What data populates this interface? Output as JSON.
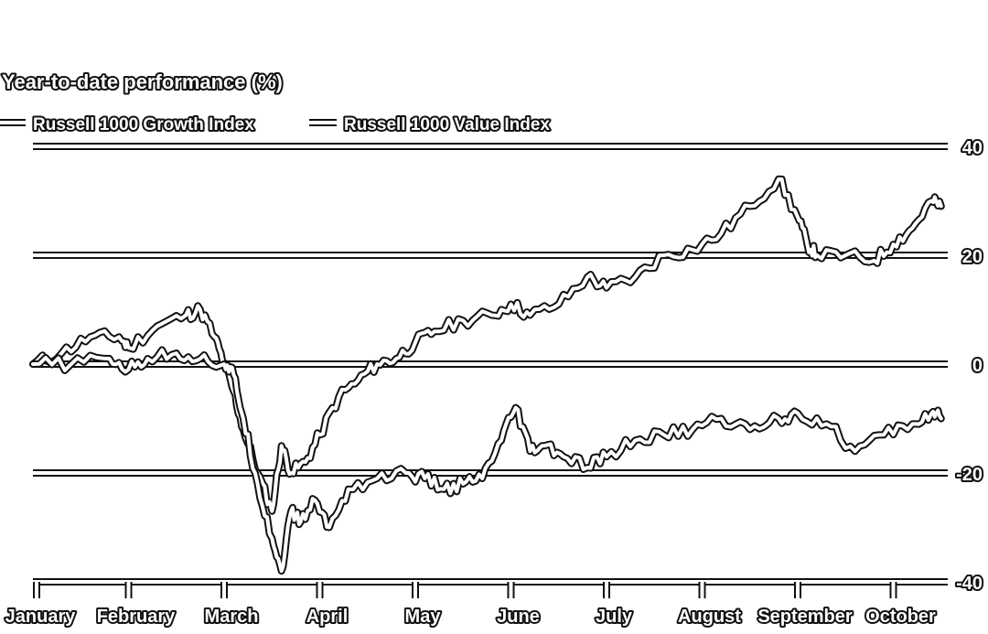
{
  "chart_data": {
    "type": "line",
    "title": "Year-to-date performance (%)",
    "xlabel": "",
    "ylabel": "",
    "ylim": [
      -40,
      40
    ],
    "y_ticks": [
      40,
      20,
      0,
      -20,
      -40
    ],
    "y_tick_labels": [
      "40",
      "20",
      "0",
      "-20",
      "-40"
    ],
    "x_tick_labels": [
      "January",
      "February",
      "March",
      "April",
      "May",
      "June",
      "July",
      "August",
      "September",
      "October"
    ],
    "x_range_months": [
      0,
      9.5
    ],
    "grid": true,
    "legend_position": "top-left",
    "colors": {
      "line": "#ffffff",
      "outline": "#111111"
    },
    "series": [
      {
        "name": "Russell 1000 Growth Index",
        "x": [
          0,
          0.3,
          0.6,
          0.9,
          1.0,
          1.3,
          1.6,
          1.75,
          1.9,
          2.0,
          2.1,
          2.2,
          2.35,
          2.5,
          2.6,
          2.7,
          2.85,
          3.0,
          3.2,
          3.4,
          3.6,
          3.8,
          4.0,
          4.2,
          4.5,
          4.8,
          5.0,
          5.2,
          5.5,
          5.8,
          6.0,
          6.3,
          6.6,
          6.9,
          7.2,
          7.5,
          7.8,
          8.0,
          8.1,
          8.2,
          8.5,
          8.8,
          9.0,
          9.2,
          9.4,
          9.5
        ],
        "values": [
          0,
          2,
          5,
          5,
          3,
          7,
          9,
          10,
          5,
          0,
          -5,
          -12,
          -20,
          -27,
          -15,
          -20,
          -18,
          -13,
          -6,
          -3,
          0,
          1,
          4,
          6,
          8,
          9,
          11,
          9,
          11,
          16,
          14,
          16,
          20,
          21,
          24,
          29,
          34,
          27,
          22,
          20,
          20,
          19,
          22,
          25,
          30,
          29
        ]
      },
      {
        "name": "Russell 1000 Value Index",
        "x": [
          0,
          0.4,
          0.8,
          1.0,
          1.2,
          1.5,
          1.75,
          2.0,
          2.1,
          2.2,
          2.35,
          2.5,
          2.6,
          2.7,
          2.8,
          2.95,
          3.1,
          3.3,
          3.6,
          3.9,
          4.1,
          4.3,
          4.5,
          4.7,
          4.9,
          5.05,
          5.2,
          5.35,
          5.55,
          5.8,
          6.0,
          6.3,
          6.6,
          6.9,
          7.2,
          7.5,
          7.8,
          8.0,
          8.3,
          8.6,
          8.9,
          9.2,
          9.4,
          9.5
        ],
        "values": [
          0,
          0,
          1,
          -1,
          1,
          2,
          1,
          0,
          -2,
          -10,
          -22,
          -32,
          -38,
          -27,
          -29,
          -25,
          -30,
          -23,
          -21,
          -20,
          -21,
          -23,
          -22,
          -21,
          -14,
          -8,
          -16,
          -15,
          -17,
          -19,
          -17,
          -14,
          -13,
          -12,
          -10,
          -12,
          -10,
          -9,
          -11,
          -16,
          -13,
          -11,
          -9,
          -10
        ]
      }
    ]
  }
}
